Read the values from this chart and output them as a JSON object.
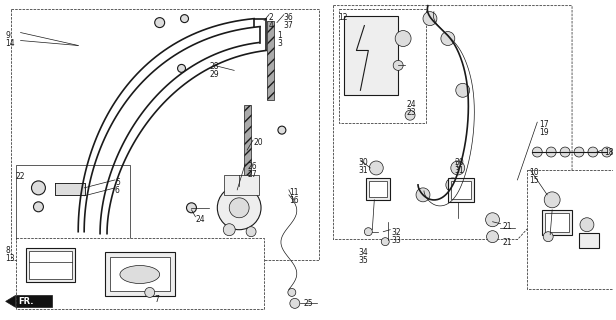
{
  "bg_color": "#ffffff",
  "line_color": "#1a1a1a",
  "fig_width": 6.16,
  "fig_height": 3.2,
  "dpi": 100,
  "fs_label": 5.5,
  "lw_main": 0.8,
  "lw_thin": 0.5,
  "lw_part": 1.2
}
